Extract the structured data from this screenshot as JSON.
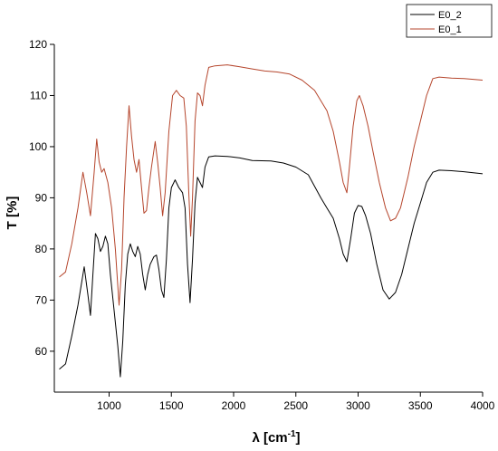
{
  "chart_data": {
    "type": "line",
    "xlabel": "λ [cm",
    "xlabel_sup": "-1",
    "xlabel_end": "]",
    "ylabel": "T [%]",
    "xlim": [
      560,
      4000
    ],
    "ylim": [
      52,
      120
    ],
    "xticks": [
      1000,
      1500,
      2000,
      2500,
      3000,
      3500,
      4000
    ],
    "yticks": [
      60,
      70,
      80,
      90,
      100,
      110,
      120
    ],
    "legend_position": "top-right",
    "series": [
      {
        "name": "E0_2",
        "color": "#000000",
        "points": [
          [
            600,
            56.5
          ],
          [
            650,
            57.5
          ],
          [
            700,
            63
          ],
          [
            750,
            69
          ],
          [
            800,
            76.5
          ],
          [
            830,
            71
          ],
          [
            850,
            67
          ],
          [
            870,
            75
          ],
          [
            890,
            83
          ],
          [
            910,
            82
          ],
          [
            930,
            79.5
          ],
          [
            950,
            80.5
          ],
          [
            970,
            82.5
          ],
          [
            990,
            81
          ],
          [
            1010,
            75
          ],
          [
            1040,
            68
          ],
          [
            1070,
            61
          ],
          [
            1090,
            55
          ],
          [
            1110,
            62
          ],
          [
            1130,
            73
          ],
          [
            1150,
            79
          ],
          [
            1170,
            81
          ],
          [
            1190,
            79.5
          ],
          [
            1210,
            78.5
          ],
          [
            1230,
            80.5
          ],
          [
            1250,
            79
          ],
          [
            1270,
            75
          ],
          [
            1290,
            72
          ],
          [
            1310,
            75
          ],
          [
            1330,
            77
          ],
          [
            1360,
            78.5
          ],
          [
            1380,
            78.8
          ],
          [
            1400,
            76
          ],
          [
            1420,
            72
          ],
          [
            1440,
            70.5
          ],
          [
            1460,
            78
          ],
          [
            1480,
            88
          ],
          [
            1500,
            92
          ],
          [
            1530,
            93.5
          ],
          [
            1560,
            92
          ],
          [
            1590,
            91
          ],
          [
            1610,
            88
          ],
          [
            1630,
            77
          ],
          [
            1650,
            69.5
          ],
          [
            1670,
            78
          ],
          [
            1690,
            89
          ],
          [
            1710,
            94
          ],
          [
            1730,
            93
          ],
          [
            1750,
            92
          ],
          [
            1770,
            96
          ],
          [
            1800,
            98
          ],
          [
            1850,
            98.2
          ],
          [
            1950,
            98.1
          ],
          [
            2050,
            97.8
          ],
          [
            2150,
            97.3
          ],
          [
            2300,
            97.2
          ],
          [
            2400,
            96.8
          ],
          [
            2500,
            96
          ],
          [
            2600,
            94.5
          ],
          [
            2700,
            90
          ],
          [
            2750,
            88
          ],
          [
            2800,
            86
          ],
          [
            2850,
            82
          ],
          [
            2880,
            79
          ],
          [
            2910,
            77.5
          ],
          [
            2940,
            82
          ],
          [
            2970,
            87
          ],
          [
            3000,
            88.5
          ],
          [
            3030,
            88.3
          ],
          [
            3060,
            86.5
          ],
          [
            3100,
            83
          ],
          [
            3150,
            77
          ],
          [
            3200,
            72
          ],
          [
            3250,
            70.2
          ],
          [
            3300,
            71.5
          ],
          [
            3350,
            75
          ],
          [
            3400,
            80
          ],
          [
            3450,
            85
          ],
          [
            3500,
            89
          ],
          [
            3550,
            93
          ],
          [
            3600,
            95
          ],
          [
            3650,
            95.4
          ],
          [
            3750,
            95.3
          ],
          [
            3850,
            95.1
          ],
          [
            4000,
            94.7
          ]
        ]
      },
      {
        "name": "E0_1",
        "color": "#b5452c",
        "points": [
          [
            600,
            74.5
          ],
          [
            650,
            75.5
          ],
          [
            700,
            81
          ],
          [
            750,
            88
          ],
          [
            790,
            95
          ],
          [
            820,
            91
          ],
          [
            850,
            86.5
          ],
          [
            880,
            95
          ],
          [
            900,
            101.5
          ],
          [
            920,
            97
          ],
          [
            940,
            95
          ],
          [
            960,
            95.7
          ],
          [
            990,
            93
          ],
          [
            1020,
            88
          ],
          [
            1050,
            80
          ],
          [
            1080,
            69
          ],
          [
            1100,
            76
          ],
          [
            1120,
            90
          ],
          [
            1140,
            100
          ],
          [
            1160,
            108
          ],
          [
            1180,
            102
          ],
          [
            1200,
            97.5
          ],
          [
            1220,
            95
          ],
          [
            1240,
            97.5
          ],
          [
            1260,
            92
          ],
          [
            1280,
            87
          ],
          [
            1300,
            87.5
          ],
          [
            1320,
            92
          ],
          [
            1340,
            96
          ],
          [
            1370,
            101
          ],
          [
            1390,
            97
          ],
          [
            1410,
            92
          ],
          [
            1430,
            86.5
          ],
          [
            1450,
            91
          ],
          [
            1480,
            103
          ],
          [
            1510,
            110
          ],
          [
            1540,
            111
          ],
          [
            1570,
            110
          ],
          [
            1600,
            109.5
          ],
          [
            1620,
            104
          ],
          [
            1640,
            91
          ],
          [
            1655,
            82.5
          ],
          [
            1670,
            90
          ],
          [
            1690,
            105
          ],
          [
            1710,
            110.5
          ],
          [
            1730,
            110
          ],
          [
            1750,
            108
          ],
          [
            1770,
            112
          ],
          [
            1800,
            115.5
          ],
          [
            1850,
            115.8
          ],
          [
            1950,
            116
          ],
          [
            2050,
            115.6
          ],
          [
            2150,
            115.2
          ],
          [
            2250,
            114.8
          ],
          [
            2350,
            114.6
          ],
          [
            2450,
            114.2
          ],
          [
            2550,
            113
          ],
          [
            2650,
            111
          ],
          [
            2750,
            107
          ],
          [
            2800,
            103
          ],
          [
            2850,
            97
          ],
          [
            2880,
            93
          ],
          [
            2910,
            91
          ],
          [
            2930,
            96
          ],
          [
            2960,
            104
          ],
          [
            2990,
            109
          ],
          [
            3010,
            110
          ],
          [
            3040,
            108
          ],
          [
            3080,
            104
          ],
          [
            3120,
            99
          ],
          [
            3170,
            93
          ],
          [
            3220,
            88
          ],
          [
            3260,
            85.5
          ],
          [
            3300,
            86
          ],
          [
            3340,
            88
          ],
          [
            3400,
            94
          ],
          [
            3450,
            100
          ],
          [
            3500,
            105
          ],
          [
            3550,
            110
          ],
          [
            3600,
            113.3
          ],
          [
            3650,
            113.6
          ],
          [
            3750,
            113.4
          ],
          [
            3850,
            113.3
          ],
          [
            4000,
            113
          ]
        ]
      }
    ]
  }
}
